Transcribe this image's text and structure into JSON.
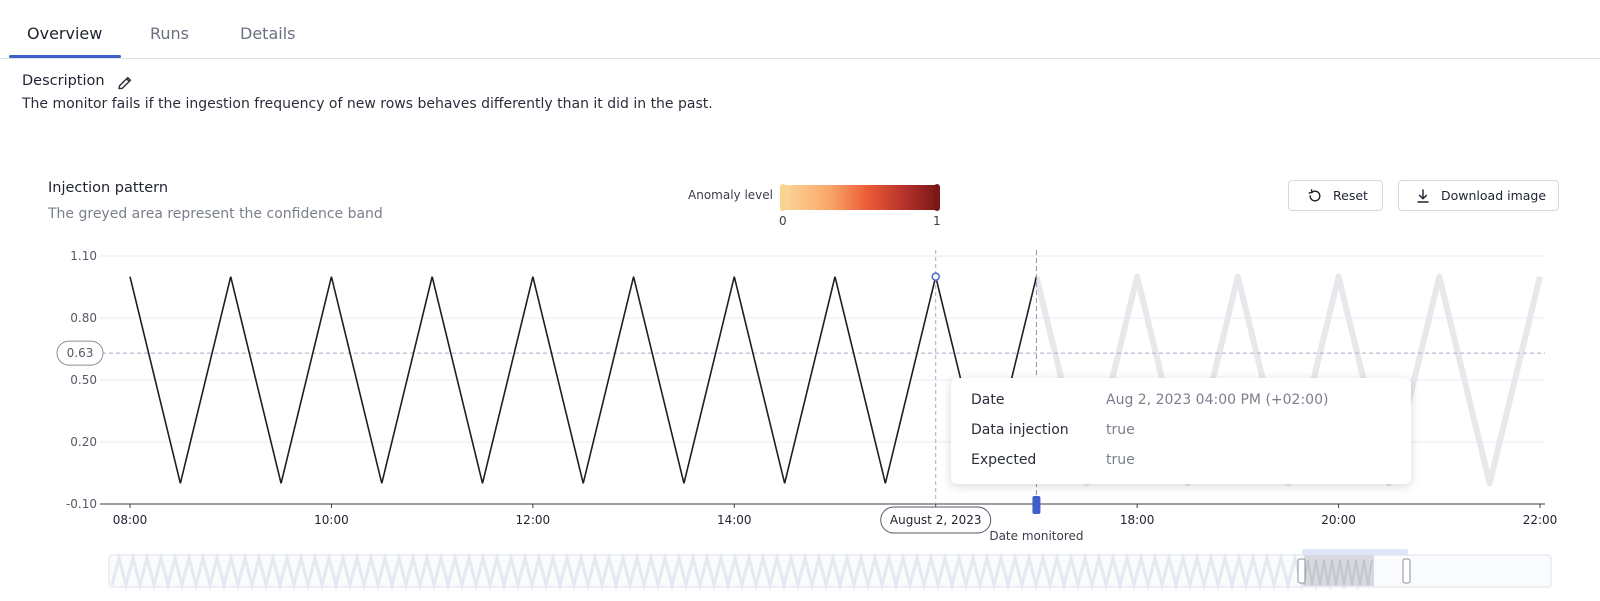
{
  "tabs": [
    {
      "label": "Overview",
      "active": true
    },
    {
      "label": "Runs",
      "active": false
    },
    {
      "label": "Details",
      "active": false
    }
  ],
  "description": {
    "title": "Description",
    "text": "The monitor fails if the ingestion frequency of new rows behaves differently than it did in the past."
  },
  "chart_header": {
    "title": "Injection pattern",
    "subtitle": "The greyed area represent the confidence band"
  },
  "buttons": {
    "reset_label": "Reset",
    "download_label": "Download image"
  },
  "anomaly_legend": {
    "label": "Anomaly level",
    "min_label": "0",
    "max_label": "1",
    "colors": [
      "#fbd79a",
      "#f8a768",
      "#ea5b37",
      "#b1302a",
      "#7b1717"
    ]
  },
  "tooltip": {
    "rows": [
      {
        "key": "Date",
        "value": "Aug 2, 2023 04:00 PM (+02:00)"
      },
      {
        "key": "Data injection",
        "value": "true"
      },
      {
        "key": "Expected",
        "value": "true"
      }
    ]
  },
  "chart_data": {
    "type": "line",
    "title": "Injection pattern",
    "x_unit": "hours",
    "xlim": [
      "08:00",
      "22:00"
    ],
    "ylim": [
      -0.1,
      1.1
    ],
    "y_ticks": [
      "1.10",
      "0.80",
      "0.50",
      "0.20",
      "-0.10"
    ],
    "x_ticks": [
      "08:00",
      "10:00",
      "12:00",
      "14:00",
      "16:00",
      "18:00",
      "20:00",
      "22:00"
    ],
    "highlighted_x_label": "August 2, 2023",
    "reference_line": {
      "value": 0.63,
      "label": "0.63"
    },
    "monitored_marker": {
      "x": "17:00",
      "label": "Date monitored"
    },
    "hover_point": {
      "x": "16:00",
      "y": 1
    },
    "series": [
      {
        "style": "actual",
        "color": "#1f1f1f",
        "x": [
          "08:00",
          "08:30",
          "09:00",
          "09:30",
          "10:00",
          "10:30",
          "11:00",
          "11:30",
          "12:00",
          "12:30",
          "13:00",
          "13:30",
          "14:00",
          "14:30",
          "15:00",
          "15:30",
          "16:00",
          "16:30",
          "17:00"
        ],
        "values": [
          1,
          0,
          1,
          0,
          1,
          0,
          1,
          0,
          1,
          0,
          1,
          0,
          1,
          0,
          1,
          0,
          1,
          0,
          1
        ]
      },
      {
        "style": "confidence-band",
        "color": "#e8e8ec",
        "x": [
          "17:00",
          "17:30",
          "18:00",
          "18:30",
          "19:00",
          "19:30",
          "20:00",
          "20:30",
          "21:00",
          "21:30",
          "22:00"
        ],
        "values": [
          1,
          0,
          1,
          0,
          1,
          0,
          1,
          0,
          1,
          0,
          1
        ]
      }
    ],
    "grid": true
  }
}
